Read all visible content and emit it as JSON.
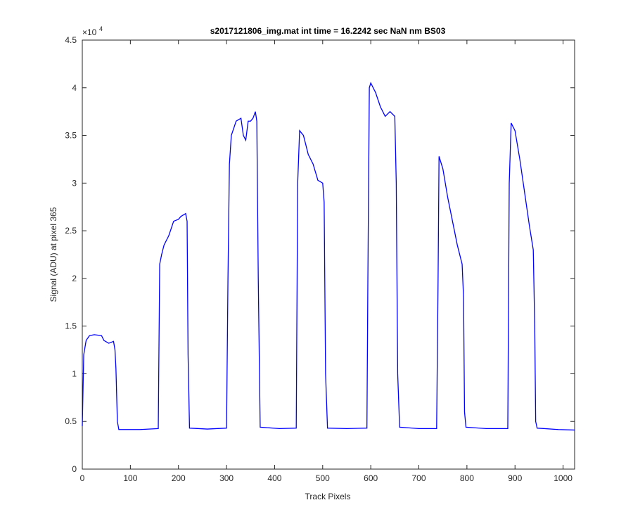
{
  "chart_data": {
    "type": "line",
    "title": "s2017121806_img.mat int time = 16.2242 sec  NaN nm BS03",
    "xlabel": "Track Pixels",
    "ylabel": "Signal (ADU) at pixel 365",
    "y_exponent_base": "×10",
    "y_exponent_power": "4",
    "xlim": [
      0,
      1024
    ],
    "ylim": [
      0,
      45000
    ],
    "xticks": [
      0,
      100,
      200,
      300,
      400,
      500,
      600,
      700,
      800,
      900,
      1000
    ],
    "yticks": [
      0,
      {
        "value": 5000,
        "label": "0.5"
      },
      {
        "value": 10000,
        "label": "1"
      },
      {
        "value": 15000,
        "label": "1.5"
      },
      {
        "value": 20000,
        "label": "2"
      },
      {
        "value": 25000,
        "label": "2.5"
      },
      {
        "value": 30000,
        "label": "3"
      },
      {
        "value": 35000,
        "label": "3.5"
      },
      {
        "value": 40000,
        "label": "4"
      },
      {
        "value": 45000,
        "label": "4.5"
      }
    ],
    "grid": false,
    "series": [
      {
        "color": "#0000ff",
        "x": [
          0,
          3,
          8,
          15,
          25,
          40,
          45,
          55,
          65,
          68,
          70,
          73,
          76,
          120,
          158,
          159,
          161,
          165,
          170,
          180,
          190,
          200,
          205,
          215,
          218,
          220,
          223,
          260,
          300,
          303,
          306,
          310,
          320,
          330,
          335,
          340,
          345,
          350,
          355,
          360,
          363,
          366,
          370,
          410,
          445,
          448,
          452,
          460,
          470,
          480,
          490,
          500,
          503,
          506,
          510,
          550,
          592,
          594,
          597,
          600,
          610,
          620,
          630,
          640,
          650,
          653,
          656,
          660,
          700,
          737,
          740,
          742,
          750,
          760,
          770,
          780,
          790,
          793,
          795,
          798,
          840,
          885,
          888,
          892,
          900,
          910,
          920,
          930,
          938,
          941,
          943,
          946,
          990,
          1024
        ],
        "values": [
          4500,
          12000,
          13500,
          14000,
          14100,
          14000,
          13500,
          13200,
          13400,
          12500,
          10500,
          5000,
          4150,
          4150,
          4250,
          10000,
          21500,
          22500,
          23500,
          24500,
          26000,
          26200,
          26500,
          26800,
          26000,
          12000,
          4300,
          4200,
          4300,
          20000,
          32000,
          35000,
          36500,
          36800,
          35000,
          34500,
          36500,
          36500,
          36800,
          37500,
          36500,
          20000,
          4400,
          4250,
          4300,
          30000,
          35500,
          35000,
          33000,
          32000,
          30300,
          30000,
          28000,
          10000,
          4300,
          4250,
          4300,
          20000,
          40000,
          40500,
          39500,
          38000,
          37000,
          37500,
          37000,
          30000,
          10000,
          4400,
          4250,
          4250,
          20000,
          32800,
          31500,
          28500,
          26000,
          23500,
          21500,
          18000,
          6000,
          4400,
          4250,
          4250,
          30000,
          36300,
          35500,
          32500,
          29000,
          25500,
          23000,
          15000,
          5000,
          4300,
          4150,
          4100
        ]
      }
    ]
  }
}
